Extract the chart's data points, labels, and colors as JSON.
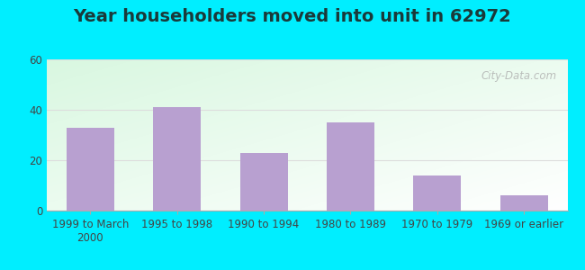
{
  "title": "Year householders moved into unit in 62972",
  "categories": [
    "1999 to March\n2000",
    "1995 to 1998",
    "1990 to 1994",
    "1980 to 1989",
    "1970 to 1979",
    "1969 or earlier"
  ],
  "values": [
    33,
    41,
    23,
    35,
    14,
    6
  ],
  "bar_color": "#B8A0D0",
  "ylim": [
    0,
    60
  ],
  "yticks": [
    0,
    20,
    40,
    60
  ],
  "title_fontsize": 14,
  "tick_fontsize": 8.5,
  "outer_bg": "#00EEFF",
  "grid_color": "#dddddd",
  "watermark": "City-Data.com",
  "title_color": "#1a3a3a"
}
